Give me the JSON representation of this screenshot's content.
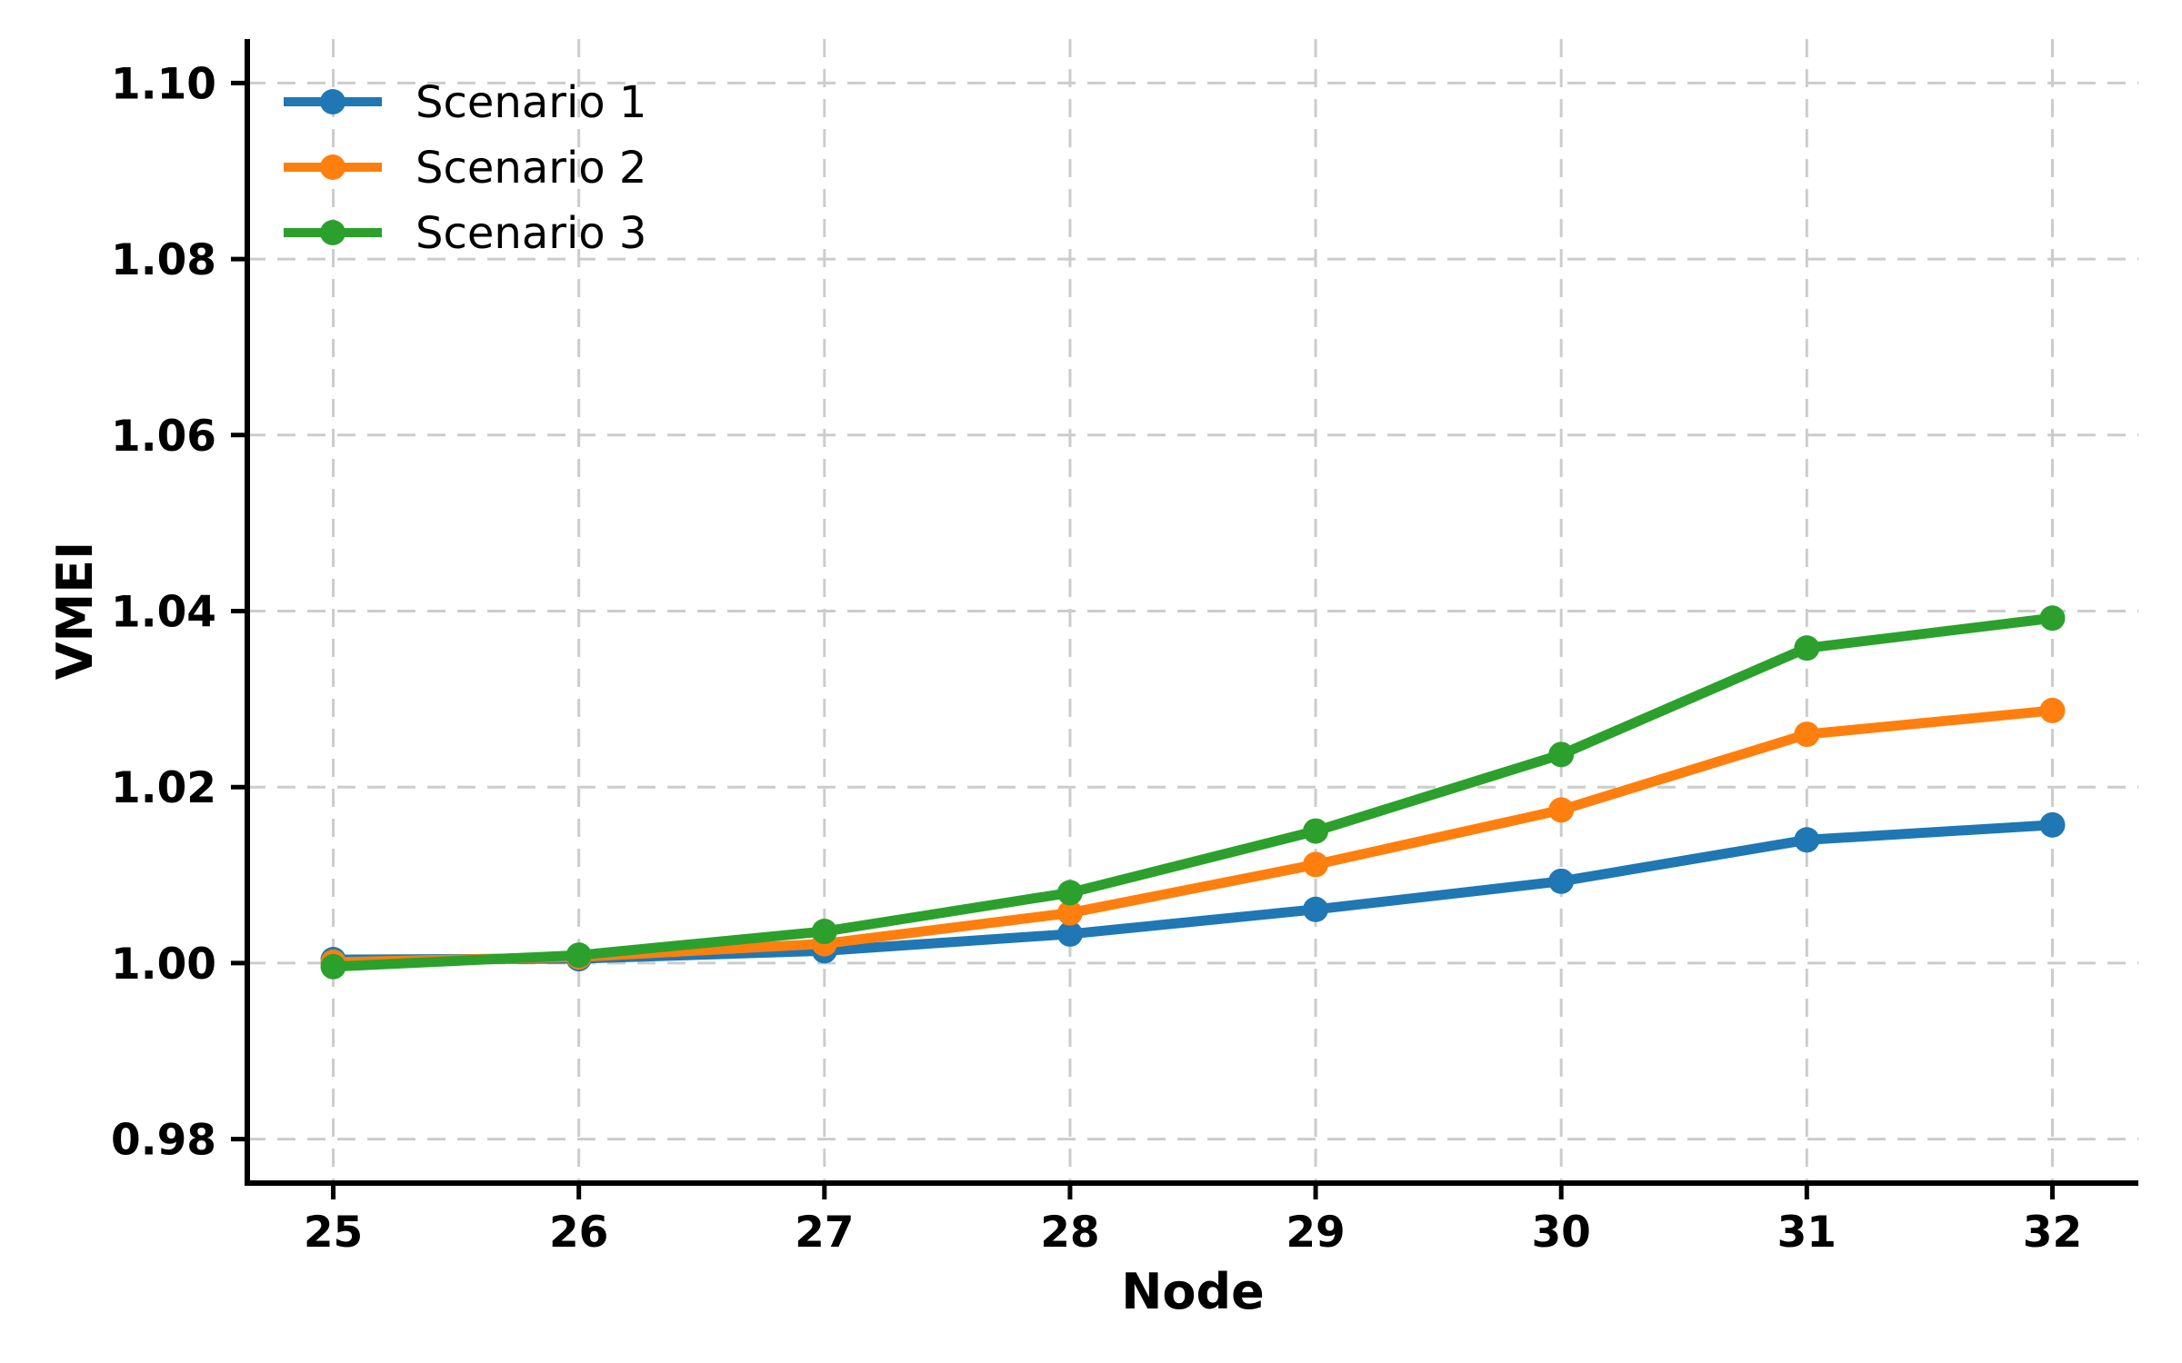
{
  "chart_data": {
    "type": "line",
    "title": "",
    "xlabel": "Node",
    "ylabel": "VMEI",
    "x": [
      25,
      26,
      27,
      28,
      29,
      30,
      31,
      32
    ],
    "series": [
      {
        "name": "Scenario 1",
        "color": "#1f77b4",
        "values": [
          1.0004,
          1.0005,
          1.0014,
          1.0033,
          1.0061,
          1.0093,
          1.014,
          1.0157
        ]
      },
      {
        "name": "Scenario 2",
        "color": "#ff7f0e",
        "values": [
          1.0001,
          1.0007,
          1.0022,
          1.0057,
          1.0112,
          1.0174,
          1.026,
          1.0287
        ]
      },
      {
        "name": "Scenario 3",
        "color": "#2ca02c",
        "values": [
          0.9996,
          1.0009,
          1.0036,
          1.008,
          1.015,
          1.0237,
          1.0358,
          1.0392
        ]
      }
    ],
    "xlim": [
      24.65,
      32.35
    ],
    "ylim": [
      0.975,
      1.105
    ],
    "x_ticks": [
      25,
      26,
      27,
      28,
      29,
      30,
      31,
      32
    ],
    "x_tick_labels": [
      "25",
      "26",
      "27",
      "28",
      "29",
      "30",
      "31",
      "32"
    ],
    "y_ticks": [
      0.98,
      1.0,
      1.02,
      1.04,
      1.06,
      1.08,
      1.1
    ],
    "y_tick_labels": [
      "0.98",
      "1.00",
      "1.02",
      "1.04",
      "1.06",
      "1.08",
      "1.10"
    ],
    "grid": true,
    "grid_style": "dashed",
    "legend_position": "upper left",
    "marker": "circle",
    "colors": {
      "grid": "#cccccc",
      "spine": "#000000",
      "text": "#000000",
      "background": "#ffffff"
    }
  }
}
